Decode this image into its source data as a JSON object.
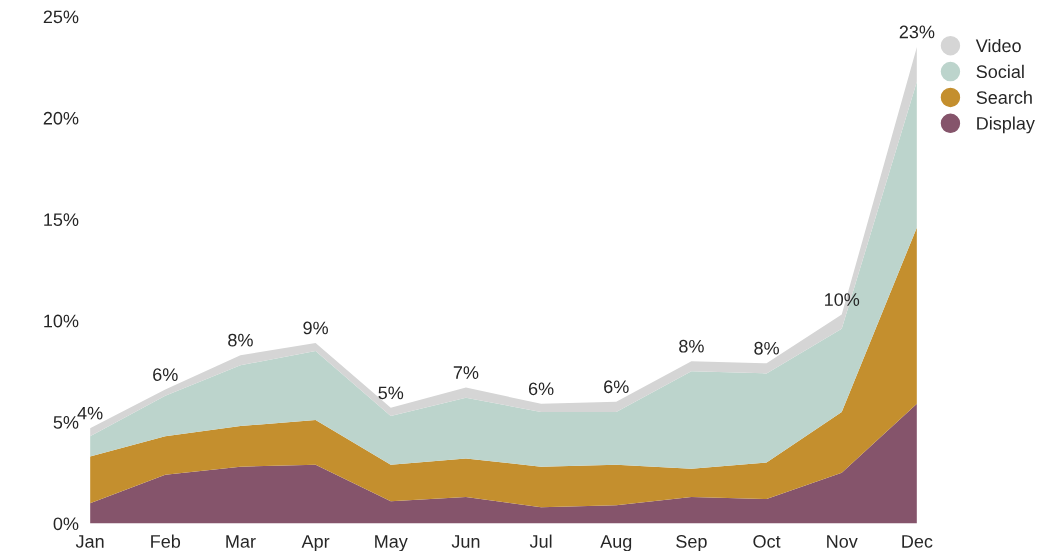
{
  "chart_data": {
    "type": "area",
    "stacked": true,
    "categories": [
      "Jan",
      "Feb",
      "Mar",
      "Apr",
      "May",
      "Jun",
      "Jul",
      "Aug",
      "Sep",
      "Oct",
      "Nov",
      "Dec"
    ],
    "series": [
      {
        "name": "Display",
        "color": "#85546b",
        "values": [
          1.0,
          2.4,
          2.8,
          2.9,
          1.1,
          1.3,
          0.8,
          0.9,
          1.3,
          1.2,
          2.5,
          5.9
        ]
      },
      {
        "name": "Search",
        "color": "#c48f2e",
        "values": [
          2.3,
          1.9,
          2.0,
          2.2,
          1.8,
          1.9,
          2.0,
          2.0,
          1.4,
          1.8,
          3.0,
          8.7
        ]
      },
      {
        "name": "Social",
        "color": "#bcd4cc",
        "values": [
          1.0,
          2.0,
          3.0,
          3.4,
          2.4,
          3.0,
          2.7,
          2.6,
          4.8,
          4.4,
          4.1,
          7.2
        ]
      },
      {
        "name": "Video",
        "color": "#d5d5d5",
        "values": [
          0.4,
          0.3,
          0.5,
          0.4,
          0.4,
          0.5,
          0.4,
          0.5,
          0.5,
          0.5,
          0.7,
          1.7
        ]
      }
    ],
    "totals": [
      "4%",
      "6%",
      "8%",
      "9%",
      "5%",
      "7%",
      "6%",
      "6%",
      "8%",
      "8%",
      "10%",
      "23%"
    ],
    "ylim": [
      0,
      25
    ],
    "yticks": [
      {
        "value": 0,
        "label": "0%"
      },
      {
        "value": 5,
        "label": "5%"
      },
      {
        "value": 10,
        "label": "10%"
      },
      {
        "value": 15,
        "label": "15%"
      },
      {
        "value": 20,
        "label": "20%"
      },
      {
        "value": 25,
        "label": "25%"
      }
    ],
    "grid": false,
    "legend": "top right"
  }
}
